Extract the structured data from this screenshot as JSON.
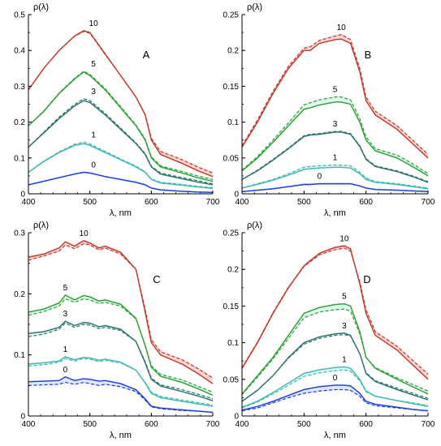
{
  "chart_data": [
    {
      "type": "line",
      "panel": "A",
      "ylabel": "ρ(λ)",
      "xlabel": "λ, nm",
      "xlim": [
        400,
        700
      ],
      "ylim": [
        0,
        0.5
      ],
      "xticks": [
        "400",
        "500",
        "600",
        "700"
      ],
      "yticks": [
        "0",
        "0.1",
        "0.2",
        "0.3",
        "0.4",
        "0.5"
      ],
      "grid": false,
      "line_styles": {
        "solid": "measured",
        "dashed": "model"
      },
      "colors": {
        "10": "#c0392b",
        "5": "#2ca02c",
        "3": "#2f6f6a",
        "1": "#3fb8b0",
        "0": "#1f3fd6",
        "band": "#f9b3b3"
      },
      "x": [
        400,
        425,
        450,
        475,
        490,
        500,
        525,
        550,
        575,
        590,
        600,
        615,
        650,
        675,
        700
      ],
      "series": [
        {
          "label": "10",
          "solid": [
            0.29,
            0.35,
            0.4,
            0.44,
            0.455,
            0.45,
            0.39,
            0.33,
            0.27,
            0.22,
            0.15,
            0.11,
            0.085,
            0.065,
            0.048
          ],
          "dashed": [
            0.29,
            0.35,
            0.4,
            0.44,
            0.453,
            0.448,
            0.388,
            0.33,
            0.27,
            0.222,
            0.155,
            0.118,
            0.095,
            0.075,
            0.058
          ]
        },
        {
          "label": "5",
          "solid": [
            0.19,
            0.23,
            0.28,
            0.32,
            0.34,
            0.33,
            0.29,
            0.24,
            0.19,
            0.15,
            0.1,
            0.075,
            0.058,
            0.045,
            0.035
          ],
          "dashed": [
            0.19,
            0.231,
            0.281,
            0.322,
            0.342,
            0.333,
            0.293,
            0.243,
            0.192,
            0.153,
            0.103,
            0.078,
            0.062,
            0.05,
            0.04
          ]
        },
        {
          "label": "3",
          "solid": [
            0.13,
            0.17,
            0.21,
            0.245,
            0.26,
            0.255,
            0.22,
            0.18,
            0.14,
            0.11,
            0.075,
            0.055,
            0.042,
            0.033,
            0.025
          ],
          "dashed": [
            0.13,
            0.172,
            0.214,
            0.249,
            0.265,
            0.26,
            0.224,
            0.183,
            0.142,
            0.112,
            0.077,
            0.058,
            0.045,
            0.037,
            0.028
          ]
        },
        {
          "label": "1",
          "solid": [
            0.06,
            0.09,
            0.115,
            0.135,
            0.14,
            0.135,
            0.115,
            0.095,
            0.075,
            0.06,
            0.04,
            0.03,
            0.024,
            0.019,
            0.015
          ],
          "dashed": [
            0.06,
            0.091,
            0.117,
            0.138,
            0.144,
            0.139,
            0.118,
            0.097,
            0.077,
            0.061,
            0.041,
            0.032,
            0.026,
            0.021,
            0.017
          ]
        },
        {
          "label": "0",
          "solid": [
            0.025,
            0.035,
            0.045,
            0.055,
            0.06,
            0.058,
            0.048,
            0.04,
            0.032,
            0.025,
            0.016,
            0.011,
            0.007,
            0.005,
            0.004
          ],
          "dashed": [
            0.025,
            0.035,
            0.045,
            0.055,
            0.06,
            0.058,
            0.048,
            0.04,
            0.032,
            0.025,
            0.016,
            0.011,
            0.007,
            0.005,
            0.004
          ]
        }
      ]
    },
    {
      "type": "line",
      "panel": "B",
      "ylabel": "ρ(λ)",
      "xlabel": "λ, nm",
      "xlim": [
        400,
        700
      ],
      "ylim": [
        0,
        0.25
      ],
      "xticks": [
        "400",
        "500",
        "600",
        "700"
      ],
      "yticks": [
        "0",
        "0.05",
        "0.1",
        "0.15",
        "0.2",
        "0.25"
      ],
      "grid": false,
      "line_styles": {
        "solid": "measured",
        "dashed": "model"
      },
      "colors": {
        "10": "#c0392b",
        "5": "#2ca02c",
        "3": "#2f6f6a",
        "1": "#3fb8b0",
        "0": "#1f3fd6",
        "band": "#f9b3b3"
      },
      "x": [
        400,
        425,
        450,
        475,
        500,
        510,
        525,
        550,
        560,
        575,
        590,
        600,
        615,
        650,
        675,
        700
      ],
      "series": [
        {
          "label": "10",
          "solid": [
            0.065,
            0.1,
            0.14,
            0.175,
            0.2,
            0.2,
            0.21,
            0.215,
            0.216,
            0.21,
            0.17,
            0.13,
            0.11,
            0.09,
            0.07,
            0.05
          ],
          "dashed": [
            0.067,
            0.103,
            0.143,
            0.178,
            0.203,
            0.205,
            0.214,
            0.22,
            0.222,
            0.215,
            0.175,
            0.135,
            0.115,
            0.095,
            0.075,
            0.055
          ]
        },
        {
          "label": "5",
          "solid": [
            0.032,
            0.05,
            0.072,
            0.095,
            0.118,
            0.12,
            0.124,
            0.128,
            0.128,
            0.125,
            0.1,
            0.075,
            0.06,
            0.05,
            0.038,
            0.025
          ],
          "dashed": [
            0.033,
            0.052,
            0.075,
            0.099,
            0.124,
            0.127,
            0.131,
            0.135,
            0.135,
            0.131,
            0.105,
            0.079,
            0.063,
            0.054,
            0.042,
            0.028
          ]
        },
        {
          "label": "3",
          "solid": [
            0.02,
            0.032,
            0.047,
            0.063,
            0.08,
            0.082,
            0.083,
            0.086,
            0.086,
            0.083,
            0.066,
            0.048,
            0.038,
            0.031,
            0.024,
            0.016
          ],
          "dashed": [
            0.02,
            0.033,
            0.048,
            0.064,
            0.081,
            0.083,
            0.084,
            0.087,
            0.087,
            0.084,
            0.067,
            0.049,
            0.039,
            0.032,
            0.025,
            0.017
          ]
        },
        {
          "label": "1",
          "solid": [
            0.008,
            0.013,
            0.019,
            0.026,
            0.034,
            0.035,
            0.036,
            0.037,
            0.037,
            0.036,
            0.028,
            0.02,
            0.016,
            0.013,
            0.01,
            0.007
          ],
          "dashed": [
            0.008,
            0.014,
            0.02,
            0.028,
            0.037,
            0.038,
            0.039,
            0.04,
            0.04,
            0.039,
            0.03,
            0.022,
            0.017,
            0.014,
            0.011,
            0.008
          ]
        },
        {
          "label": "0",
          "solid": [
            0.003,
            0.005,
            0.007,
            0.01,
            0.013,
            0.013,
            0.014,
            0.014,
            0.014,
            0.014,
            0.011,
            0.008,
            0.006,
            0.005,
            0.004,
            0.003
          ],
          "dashed": [
            0.003,
            0.005,
            0.007,
            0.01,
            0.013,
            0.013,
            0.014,
            0.014,
            0.014,
            0.014,
            0.011,
            0.008,
            0.006,
            0.005,
            0.004,
            0.003
          ]
        }
      ]
    },
    {
      "type": "line",
      "panel": "C",
      "ylabel": "ρ(λ)",
      "xlabel": "λ, nm",
      "xlim": [
        400,
        700
      ],
      "ylim": [
        0,
        0.3
      ],
      "xticks": [
        "400",
        "500",
        "600",
        "700"
      ],
      "yticks": [
        "0",
        "0.1",
        "0.2",
        "0.3"
      ],
      "grid": false,
      "line_styles": {
        "solid": "measured",
        "dashed": "model"
      },
      "colors": {
        "10": "#c0392b",
        "5": "#2ca02c",
        "3": "#2f6f6a",
        "1": "#3fb8b0",
        "0": "#1f3fd6",
        "band": "#f9b3b3"
      },
      "x": [
        400,
        425,
        450,
        460,
        475,
        490,
        500,
        515,
        525,
        550,
        575,
        590,
        600,
        615,
        650,
        675,
        700
      ],
      "series": [
        {
          "label": "10",
          "solid": [
            0.26,
            0.265,
            0.275,
            0.285,
            0.278,
            0.287,
            0.283,
            0.275,
            0.278,
            0.268,
            0.24,
            0.17,
            0.12,
            0.1,
            0.085,
            0.07,
            0.053
          ],
          "dashed": [
            0.255,
            0.262,
            0.27,
            0.28,
            0.274,
            0.282,
            0.28,
            0.272,
            0.275,
            0.265,
            0.24,
            0.175,
            0.125,
            0.105,
            0.092,
            0.078,
            0.062
          ]
        },
        {
          "label": "5",
          "solid": [
            0.17,
            0.175,
            0.185,
            0.198,
            0.19,
            0.197,
            0.195,
            0.188,
            0.19,
            0.183,
            0.16,
            0.115,
            0.08,
            0.065,
            0.055,
            0.045,
            0.034
          ],
          "dashed": [
            0.165,
            0.171,
            0.18,
            0.192,
            0.186,
            0.192,
            0.19,
            0.184,
            0.186,
            0.18,
            0.159,
            0.116,
            0.082,
            0.068,
            0.059,
            0.049,
            0.039
          ]
        },
        {
          "label": "3",
          "solid": [
            0.135,
            0.138,
            0.145,
            0.155,
            0.148,
            0.153,
            0.152,
            0.146,
            0.148,
            0.142,
            0.122,
            0.087,
            0.06,
            0.049,
            0.04,
            0.033,
            0.025
          ],
          "dashed": [
            0.13,
            0.134,
            0.142,
            0.152,
            0.145,
            0.15,
            0.149,
            0.143,
            0.145,
            0.14,
            0.122,
            0.089,
            0.062,
            0.051,
            0.043,
            0.036,
            0.028
          ]
        },
        {
          "label": "1",
          "solid": [
            0.085,
            0.087,
            0.09,
            0.097,
            0.092,
            0.096,
            0.095,
            0.091,
            0.093,
            0.088,
            0.075,
            0.054,
            0.037,
            0.03,
            0.024,
            0.02,
            0.016
          ],
          "dashed": [
            0.082,
            0.084,
            0.088,
            0.094,
            0.09,
            0.094,
            0.093,
            0.089,
            0.091,
            0.087,
            0.075,
            0.055,
            0.039,
            0.032,
            0.026,
            0.022,
            0.018
          ]
        },
        {
          "label": "0",
          "solid": [
            0.056,
            0.057,
            0.058,
            0.064,
            0.058,
            0.061,
            0.06,
            0.057,
            0.058,
            0.053,
            0.043,
            0.028,
            0.016,
            0.013,
            0.01,
            0.008,
            0.006
          ],
          "dashed": [
            0.05,
            0.051,
            0.052,
            0.055,
            0.052,
            0.055,
            0.053,
            0.05,
            0.052,
            0.048,
            0.04,
            0.026,
            0.015,
            0.012,
            0.009,
            0.008,
            0.006
          ]
        }
      ]
    },
    {
      "type": "line",
      "panel": "D",
      "ylabel": "ρ(λ)",
      "xlabel": "λ, nm",
      "xlim": [
        400,
        700
      ],
      "ylim": [
        0,
        0.25
      ],
      "xticks": [
        "400",
        "500",
        "600",
        "700"
      ],
      "yticks": [
        "0",
        "0.05",
        "0.1",
        "0.15",
        "0.2",
        "0.25"
      ],
      "grid": false,
      "line_styles": {
        "solid": "measured",
        "dashed": "model"
      },
      "colors": {
        "10": "#c0392b",
        "5": "#2ca02c",
        "3": "#2f6f6a",
        "1": "#3fb8b0",
        "0": "#1f3fd6",
        "band": "#f9b3b3"
      },
      "x": [
        400,
        425,
        450,
        475,
        500,
        525,
        550,
        565,
        575,
        590,
        600,
        615,
        650,
        675,
        700
      ],
      "series": [
        {
          "label": "10",
          "solid": [
            0.065,
            0.1,
            0.14,
            0.175,
            0.205,
            0.222,
            0.23,
            0.232,
            0.228,
            0.18,
            0.14,
            0.11,
            0.09,
            0.07,
            0.05
          ],
          "dashed": [
            0.066,
            0.101,
            0.141,
            0.176,
            0.204,
            0.22,
            0.227,
            0.229,
            0.225,
            0.183,
            0.145,
            0.115,
            0.095,
            0.076,
            0.057
          ]
        },
        {
          "label": "5",
          "solid": [
            0.03,
            0.055,
            0.08,
            0.11,
            0.14,
            0.148,
            0.152,
            0.153,
            0.15,
            0.115,
            0.08,
            0.065,
            0.05,
            0.04,
            0.03
          ],
          "dashed": [
            0.029,
            0.053,
            0.078,
            0.106,
            0.134,
            0.142,
            0.145,
            0.146,
            0.143,
            0.112,
            0.08,
            0.066,
            0.052,
            0.043,
            0.034
          ]
        },
        {
          "label": "3",
          "solid": [
            0.02,
            0.035,
            0.055,
            0.08,
            0.1,
            0.108,
            0.112,
            0.113,
            0.11,
            0.085,
            0.058,
            0.047,
            0.036,
            0.029,
            0.022
          ],
          "dashed": [
            0.02,
            0.035,
            0.055,
            0.079,
            0.098,
            0.106,
            0.11,
            0.111,
            0.109,
            0.085,
            0.059,
            0.048,
            0.038,
            0.031,
            0.024
          ]
        },
        {
          "label": "1",
          "solid": [
            0.012,
            0.02,
            0.032,
            0.045,
            0.058,
            0.063,
            0.066,
            0.067,
            0.065,
            0.05,
            0.034,
            0.027,
            0.021,
            0.017,
            0.013
          ],
          "dashed": [
            0.011,
            0.019,
            0.03,
            0.042,
            0.054,
            0.059,
            0.062,
            0.063,
            0.061,
            0.048,
            0.033,
            0.027,
            0.021,
            0.018,
            0.014
          ]
        },
        {
          "label": "0",
          "solid": [
            0.008,
            0.013,
            0.02,
            0.028,
            0.036,
            0.04,
            0.042,
            0.042,
            0.041,
            0.031,
            0.02,
            0.016,
            0.012,
            0.009,
            0.007
          ],
          "dashed": [
            0.007,
            0.011,
            0.018,
            0.025,
            0.031,
            0.034,
            0.036,
            0.036,
            0.035,
            0.027,
            0.018,
            0.014,
            0.011,
            0.009,
            0.007
          ]
        }
      ]
    }
  ]
}
